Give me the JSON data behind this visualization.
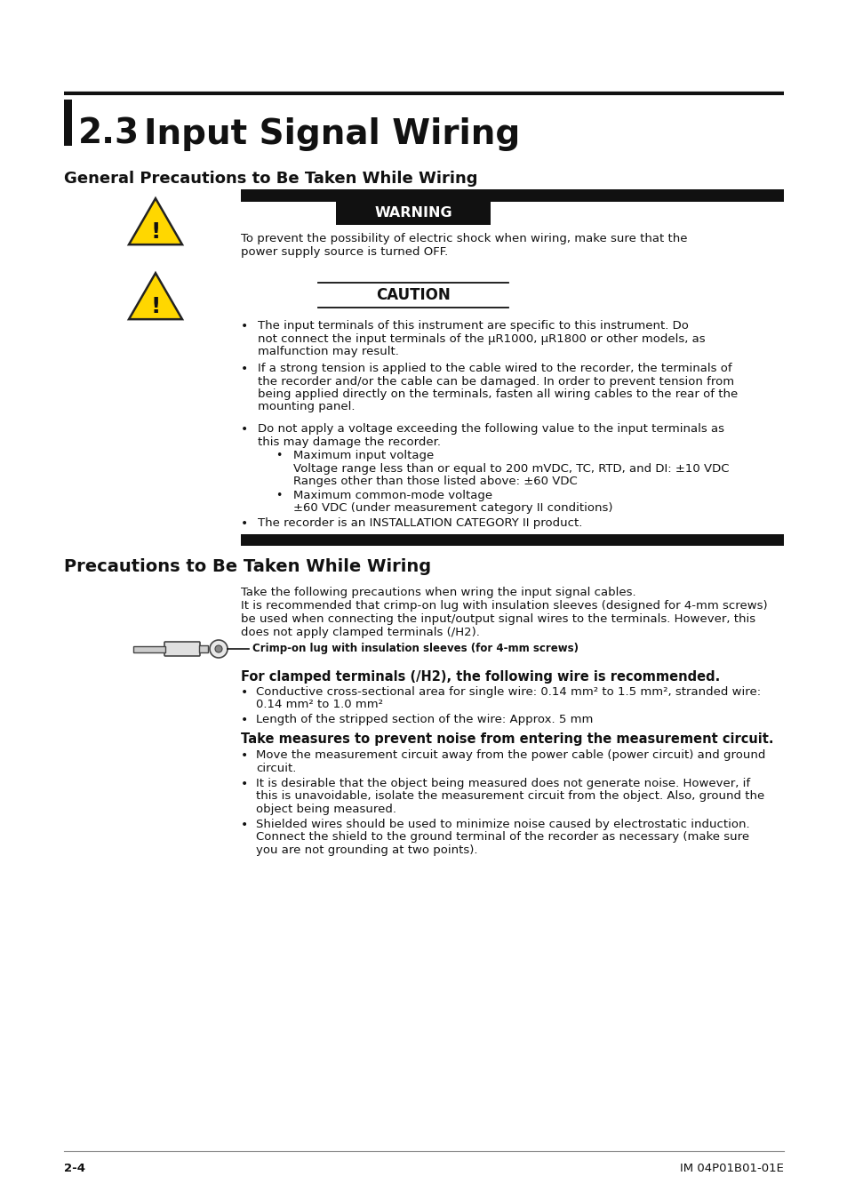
{
  "bg_color": "#ffffff",
  "text_color": "#1a1a1a",
  "yellow_color": "#FFD700",
  "black_bar_color": "#1a1a1a",
  "footer_left": "2-4",
  "footer_right": "IM 04P01B01-01E",
  "section_number": "2.3",
  "section_title": "Input Signal Wiring",
  "subsection1_title": "General Precautions to Be Taken While Wiring",
  "subsection2_title": "Precautions to Be Taken While Wiring",
  "warning_text": "WARNING",
  "caution_text": "CAUTION",
  "crimp_label": "Crimp-on lug with insulation sleeves (for 4-mm screws)",
  "clamped_title": "For clamped terminals (/H2), the following wire is recommended.",
  "noise_title": "Take measures to prevent noise from entering the measurement circuit."
}
